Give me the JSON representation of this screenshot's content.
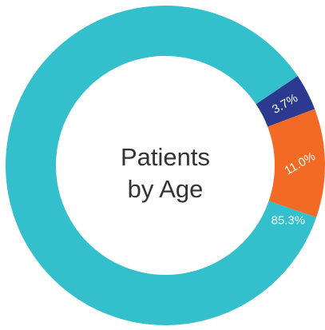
{
  "chart_data": {
    "type": "pie",
    "style": "donut",
    "center_title_line1": "Patients",
    "center_title_line2": "by Age",
    "slices": [
      {
        "value": 85.3,
        "label": "85.3%",
        "color": "#33bfcb"
      },
      {
        "value": 3.7,
        "label": "3.7%",
        "color": "#2b3a8f"
      },
      {
        "value": 11.0,
        "label": "11.0%",
        "color": "#f26a24"
      }
    ]
  }
}
